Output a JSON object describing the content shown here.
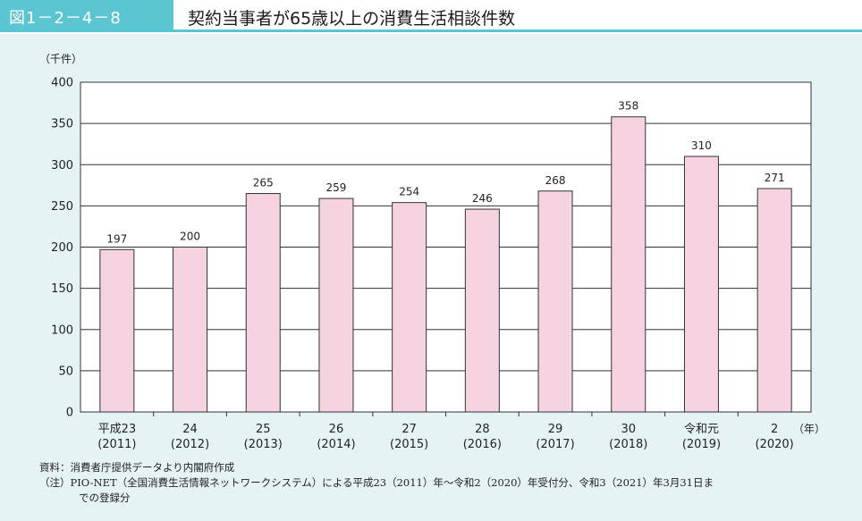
{
  "figure": {
    "number": "図1－2－4－8",
    "title": "契約当事者が65歳以上の消費生活相談件数"
  },
  "chart_data": {
    "type": "bar",
    "unit_label": "（千件）",
    "x_unit_label": "（年）",
    "categories": [
      {
        "era": "平成23",
        "year": "(2011)"
      },
      {
        "era": "24",
        "year": "(2012)"
      },
      {
        "era": "25",
        "year": "(2013)"
      },
      {
        "era": "26",
        "year": "(2014)"
      },
      {
        "era": "27",
        "year": "(2015)"
      },
      {
        "era": "28",
        "year": "(2016)"
      },
      {
        "era": "29",
        "year": "(2017)"
      },
      {
        "era": "30",
        "year": "(2018)"
      },
      {
        "era": "令和元",
        "year": "(2019)"
      },
      {
        "era": "2",
        "year": "(2020)"
      }
    ],
    "values": [
      197,
      200,
      265,
      259,
      254,
      246,
      268,
      358,
      310,
      271
    ],
    "ylim": [
      0,
      400
    ],
    "yticks": [
      0,
      50,
      100,
      150,
      200,
      250,
      300,
      350,
      400
    ],
    "grid": true,
    "colors": {
      "bar_fill": "#f5d3e0",
      "bar_stroke": "#333333",
      "grid": "#333333"
    }
  },
  "notes": {
    "source": "資料：消費者庁提供データより内閣府作成",
    "note_line1": "（注）PIO-NET（全国消費生活情報ネットワークシステム）による平成23（2011）年～令和2（2020）年受付分、令和3（2021）年3月31日ま",
    "note_line2": "での登録分"
  }
}
